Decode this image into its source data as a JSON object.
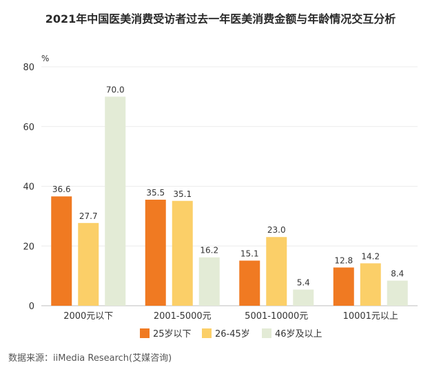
{
  "chart_data": {
    "type": "bar",
    "title": "2021年中国医美消费受访者过去一年医美消费金额与年龄情况交互分析",
    "ylabel": "%",
    "xlabel": "",
    "ylim": [
      0,
      80
    ],
    "yticks": [
      0,
      20,
      40,
      60,
      80
    ],
    "grid": true,
    "legend_position": "bottom",
    "categories": [
      "2000元以下",
      "2001-5000元",
      "5001-10000元",
      "10001元以上"
    ],
    "series": [
      {
        "name": "25岁以下",
        "values": [
          36.6,
          35.5,
          15.1,
          12.8
        ],
        "color": "#f07a22"
      },
      {
        "name": "26-45岁",
        "values": [
          27.7,
          35.1,
          23.0,
          14.2
        ],
        "color": "#fbcf68"
      },
      {
        "name": "46岁及以上",
        "values": [
          70.0,
          16.2,
          5.4,
          8.4
        ],
        "color": "#e3ebd6"
      }
    ],
    "value_labels": [
      [
        "36.6",
        "35.5",
        "15.1",
        "12.8"
      ],
      [
        "27.7",
        "35.1",
        "23.0",
        "14.2"
      ],
      [
        "70.0",
        "16.2",
        "5.4",
        "8.4"
      ]
    ],
    "source": "数据来源：iiMedia Research(艾媒咨询)"
  }
}
